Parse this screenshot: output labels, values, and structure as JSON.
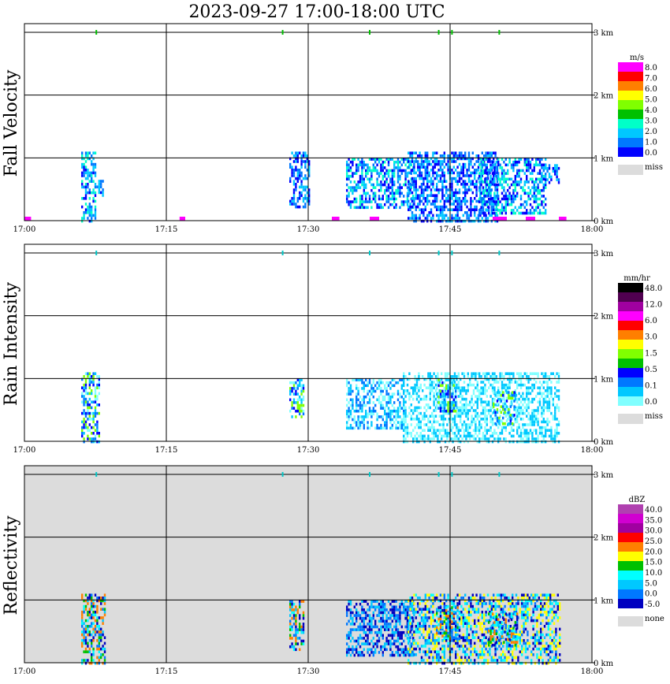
{
  "title": "2023-09-27   17:00-18:00 UTC",
  "x_ticks": [
    "17:00",
    "17:15",
    "17:30",
    "17:45",
    "18:00"
  ],
  "y_ticks": [
    "0 km",
    "1 km",
    "2 km",
    "3 km"
  ],
  "chart_data": [
    {
      "type": "heatmap",
      "ylabel": "Fall Velocity",
      "xlim": [
        "17:00",
        "18:00"
      ],
      "ylim": [
        0,
        3.1
      ],
      "grid": true,
      "colorbar": {
        "unit": "m/s",
        "labels": [
          "8.0",
          "7.0",
          "6.0",
          "5.0",
          "4.0",
          "3.0",
          "2.0",
          "1.0",
          "0.0"
        ],
        "colors": [
          "#ff00ff",
          "#ff0000",
          "#ff7f00",
          "#ffff00",
          "#80ff00",
          "#00c000",
          "#00ffc8",
          "#00c8ff",
          "#0078ff",
          "#0000ff"
        ],
        "miss_label": "miss",
        "miss_color": "#dcdcdc"
      },
      "echoes": [
        {
          "t0": 6.0,
          "t1": 7.6,
          "z0": 0.0,
          "z1": 1.1,
          "level": 2
        },
        {
          "t0": 7.6,
          "t1": 8.4,
          "z0": 0.4,
          "z1": 0.65,
          "level": 1
        },
        {
          "t0": 28.0,
          "t1": 30.0,
          "z0": 0.2,
          "z1": 1.1,
          "level": 1
        },
        {
          "t0": 34.0,
          "t1": 41.0,
          "z0": 0.2,
          "z1": 1.0,
          "level": 2
        },
        {
          "t0": 40.5,
          "t1": 50.0,
          "z0": 0.0,
          "z1": 1.1,
          "level": 1
        },
        {
          "t0": 48.0,
          "t1": 55.0,
          "z0": 0.1,
          "z1": 1.0,
          "level": 2
        },
        {
          "t0": 55.0,
          "t1": 56.5,
          "z0": 0.6,
          "z1": 0.9,
          "level": 1
        }
      ],
      "surface_marks": [
        [
          0,
          0.7
        ],
        [
          16.4,
          17
        ],
        [
          32.5,
          33.3
        ],
        [
          36.5,
          37.5
        ],
        [
          49.5,
          51
        ],
        [
          53,
          54
        ],
        [
          56.5,
          57.3
        ]
      ],
      "top_marks": [
        7.6,
        27.3,
        36.5,
        43.8,
        45.2,
        50.2
      ],
      "top_mark_color": "#00c000"
    },
    {
      "type": "heatmap",
      "ylabel": "Rain Intensity",
      "xlim": [
        "17:00",
        "18:00"
      ],
      "ylim": [
        0,
        3.1
      ],
      "grid": true,
      "colorbar": {
        "unit": "mm/hr",
        "labels": [
          "48.0",
          "12.0",
          "6.0",
          "3.0",
          "1.5",
          "0.5",
          "0.1",
          "0.0"
        ],
        "colors": [
          "#000000",
          "#500050",
          "#a000a0",
          "#ff00ff",
          "#ff0000",
          "#ff7f00",
          "#ffff00",
          "#80ff00",
          "#00c000",
          "#0000ff",
          "#0078ff",
          "#00c8ff",
          "#80ffff"
        ],
        "miss_label": "miss",
        "miss_color": "#dcdcdc"
      },
      "echoes": [
        {
          "t0": 6.0,
          "t1": 8.0,
          "z0": 0.0,
          "z1": 1.1,
          "level": 2
        },
        {
          "t0": 28.0,
          "t1": 29.5,
          "z0": 0.4,
          "z1": 1.0,
          "level": 2
        },
        {
          "t0": 34.0,
          "t1": 40.0,
          "z0": 0.2,
          "z1": 1.0,
          "level": 1
        },
        {
          "t0": 40.0,
          "t1": 56.5,
          "z0": 0.0,
          "z1": 1.1,
          "level": 0
        },
        {
          "t0": 43.5,
          "t1": 45.5,
          "z0": 0.5,
          "z1": 1.0,
          "level": 2
        },
        {
          "t0": 49.5,
          "t1": 52.0,
          "z0": 0.3,
          "z1": 0.8,
          "level": 2
        }
      ],
      "top_marks": [
        7.6,
        27.3,
        36.5,
        43.8,
        45.2,
        50.2
      ],
      "top_mark_color": "#00c8c8"
    },
    {
      "type": "heatmap",
      "ylabel": "Reflectivity",
      "xlim": [
        "17:00",
        "18:00"
      ],
      "ylim": [
        0,
        3.1
      ],
      "grid": true,
      "background": "#dcdcdc",
      "colorbar": {
        "unit": "dBZ",
        "labels": [
          "40.0",
          "35.0",
          "30.0",
          "25.0",
          "20.0",
          "15.0",
          "10.0",
          "5.0",
          "0.0",
          "-5.0"
        ],
        "colors": [
          "#b040b0",
          "#d000d0",
          "#a000a0",
          "#ff0000",
          "#ff7f00",
          "#ffff00",
          "#00c000",
          "#00ffff",
          "#00c8ff",
          "#0078ff",
          "#0000c0"
        ],
        "miss_label": "none",
        "miss_color": "#dcdcdc"
      },
      "echoes": [
        {
          "t0": 6.0,
          "t1": 8.5,
          "z0": 0.0,
          "z1": 1.1,
          "level": 3
        },
        {
          "t0": 28.0,
          "t1": 29.5,
          "z0": 0.2,
          "z1": 1.0,
          "level": 3
        },
        {
          "t0": 34.0,
          "t1": 41.0,
          "z0": 0.1,
          "z1": 1.0,
          "level": 1
        },
        {
          "t0": 40.5,
          "t1": 56.5,
          "z0": 0.0,
          "z1": 1.1,
          "level": 2
        },
        {
          "t0": 43.5,
          "t1": 46.0,
          "z0": 0.4,
          "z1": 0.9,
          "level": 3
        },
        {
          "t0": 49.0,
          "t1": 52.0,
          "z0": 0.3,
          "z1": 0.8,
          "level": 3
        }
      ],
      "top_marks": [
        7.6,
        27.3,
        36.5,
        43.8,
        45.2,
        50.2
      ],
      "top_mark_color": "#00c8c8"
    }
  ]
}
